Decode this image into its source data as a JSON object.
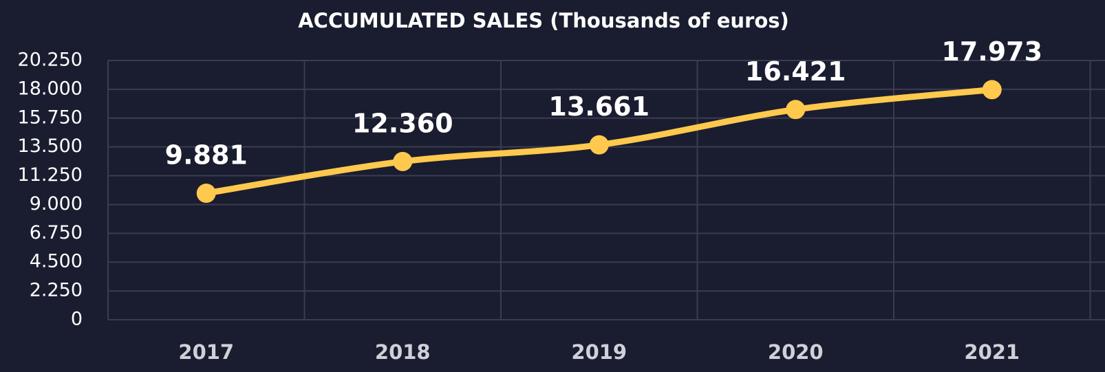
{
  "chart_data": {
    "type": "line",
    "title": "ACCUMULATED SALES (Thousands of euros)",
    "categories": [
      "2017",
      "2018",
      "2019",
      "2020",
      "2021"
    ],
    "series": [
      {
        "name": "Accumulated sales",
        "color": "#ffc94d",
        "values": [
          9881,
          12360,
          13661,
          16421,
          17973
        ],
        "value_labels": [
          "9.881",
          "12.360",
          "13.661",
          "16.421",
          "17.973"
        ]
      }
    ],
    "ylim": [
      0,
      20250
    ],
    "yticks": [
      0,
      {
        "value": 2250,
        "label": "2.250"
      },
      {
        "value": 4500,
        "label": "4.500"
      },
      {
        "value": 6750,
        "label": "6.750"
      },
      {
        "value": 9000,
        "label": "9.000"
      },
      {
        "value": 11250,
        "label": "11.250"
      },
      {
        "value": 13500,
        "label": "13.500"
      },
      {
        "value": 15750,
        "label": "15.750"
      },
      {
        "value": 18000,
        "label": "18.000"
      },
      {
        "value": 20250,
        "label": "20.250"
      }
    ],
    "grid": true
  }
}
